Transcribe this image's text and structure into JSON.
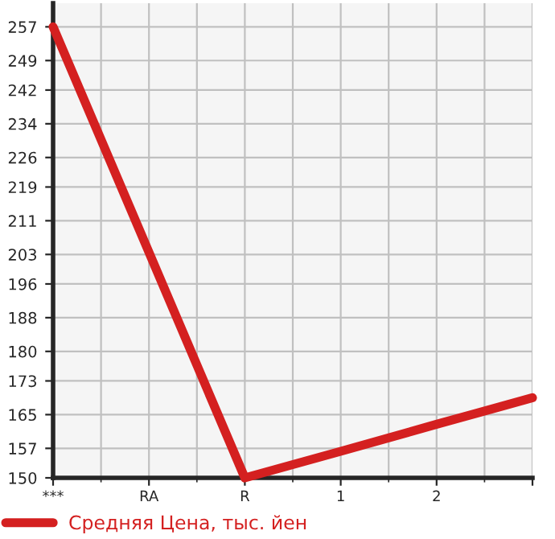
{
  "chart_data": {
    "type": "line",
    "categories": [
      "***",
      "RA",
      "R",
      "1",
      "2",
      null
    ],
    "series": [
      {
        "name": "Средняя Цена, тыс. йен",
        "color": "#d42020",
        "values": [
          257,
          203.5,
          150,
          156.3,
          162.7,
          169
        ]
      }
    ],
    "ylim": [
      150,
      262.6
    ],
    "yticks": [
      150,
      157,
      165,
      173,
      180,
      188,
      196,
      203,
      211,
      219,
      226,
      234,
      242,
      249,
      257
    ],
    "grid": true,
    "legend": "bottom left",
    "marker": "none",
    "line_style": "solid"
  }
}
